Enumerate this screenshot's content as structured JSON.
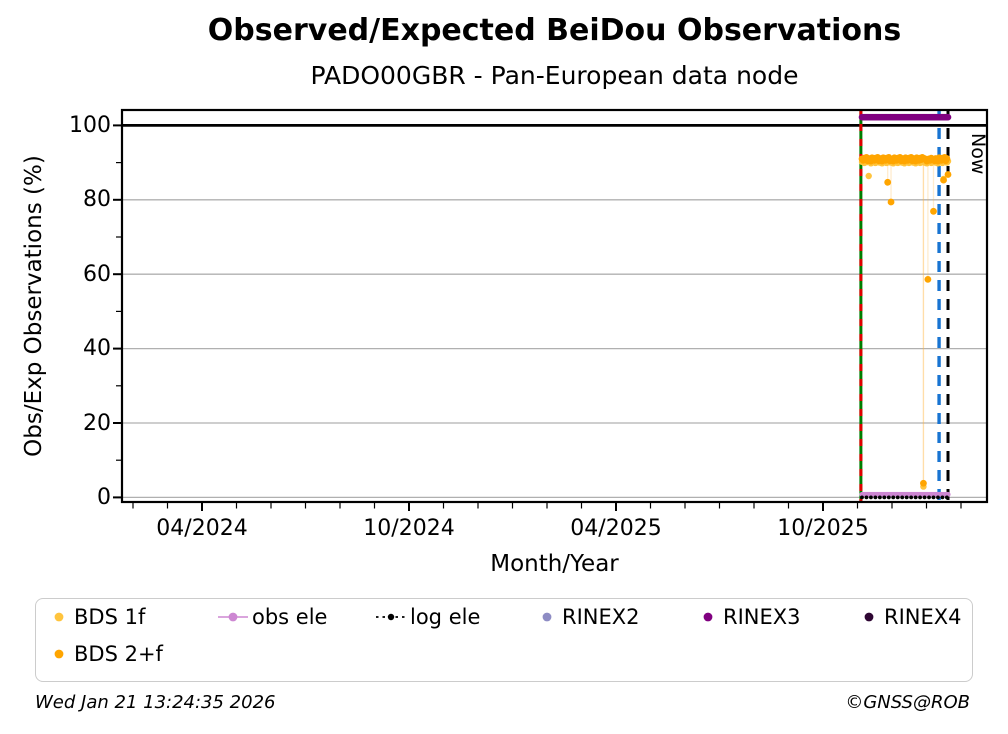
{
  "title": "Observed/Expected BeiDou Observations",
  "subtitle": "PADO00GBR - Pan-European data node",
  "station_id": "PADO00GBR",
  "axes": {
    "xlabel": "Month/Year",
    "ylabel": "Obs/Exp Observations (%)"
  },
  "annotations": {
    "now_label": "Now"
  },
  "legend": {
    "items": [
      {
        "label": "BDS 1f",
        "marker": "dot",
        "color": "#FFC43D"
      },
      {
        "label": "BDS 2+f",
        "marker": "dot",
        "color": "#FFA500"
      },
      {
        "label": "obs ele",
        "marker": "dot-line",
        "color": "#CD87D2"
      },
      {
        "label": "log ele",
        "marker": "dot-dotted-line",
        "color": "#000000"
      },
      {
        "label": "RINEX2",
        "marker": "dot",
        "color": "#8E8CC4"
      },
      {
        "label": "RINEX3",
        "marker": "dot",
        "color": "#800080"
      },
      {
        "label": "RINEX4",
        "marker": "dot",
        "color": "#2E0633"
      }
    ]
  },
  "footer": {
    "timestamp": "Wed Jan 21 13:24:35 2026",
    "credit": "©GNSS@ROB"
  },
  "chart_data": {
    "type": "scatter",
    "title": "Observed/Expected BeiDou Observations",
    "subtitle": "PADO00GBR - Pan-European data node",
    "xlabel": "Month/Year",
    "ylabel": "Obs/Exp Observations (%)",
    "ylim": [
      0,
      104.5
    ],
    "x_range_months": [
      "01/2024",
      "02/2026"
    ],
    "x_major_ticks": [
      "04/2024",
      "10/2024",
      "04/2025",
      "10/2025"
    ],
    "x_minor_tick_unit": "month",
    "y_major_ticks": [
      0,
      20,
      40,
      60,
      80,
      100
    ],
    "y_minor_ticks": [
      10,
      30,
      50,
      70,
      90
    ],
    "grid": "horizontal gray lines at 0/20/40/60/80",
    "reference_line_y": 100,
    "legend_position": "below plot",
    "x_unit": "days, day 0 = first data point (~03 Nov 2025)",
    "series": [
      {
        "name": "BDS 1f",
        "color": "#FFC43D",
        "marker": "circle",
        "day_start": 0,
        "values": [
          90.2,
          90.7,
          89.9,
          90.5,
          90.1,
          90.8,
          86.4,
          90.4,
          89.8,
          90.6,
          90.2,
          90.7,
          89.9,
          90.5,
          90.1,
          90.8,
          90.0,
          90.4,
          89.8,
          90.6,
          90.2,
          90.7,
          89.9,
          90.5,
          90.1,
          90.8,
          90.0,
          90.4,
          89.8,
          90.6,
          90.2,
          90.7,
          89.9,
          90.5,
          90.1,
          90.8,
          90.0,
          90.4,
          89.8,
          90.6,
          90.2,
          90.7,
          89.9,
          90.5,
          90.1,
          90.8,
          90.0,
          90.4,
          89.8,
          90.6,
          90.2,
          90.7,
          89.9,
          90.5,
          90.1,
          2.9,
          90.0,
          90.4,
          89.8,
          90.6,
          90.2,
          90.7,
          89.9,
          90.5,
          90.1,
          90.8,
          90.0,
          90.4,
          89.8,
          90.6,
          90.2,
          90.7,
          89.9,
          85.6,
          90.1,
          90.8,
          90.0,
          90.4
        ]
      },
      {
        "name": "BDS 2+f",
        "color": "#FFA500",
        "marker": "circle",
        "day_start": 0,
        "values": [
          91.0,
          90.6,
          91.2,
          90.8,
          91.4,
          90.5,
          91.1,
          90.9,
          90.4,
          91.3,
          91.0,
          90.6,
          91.2,
          90.8,
          91.4,
          90.5,
          91.1,
          90.9,
          90.4,
          91.3,
          91.0,
          90.6,
          91.2,
          84.7,
          91.4,
          90.5,
          79.4,
          90.9,
          90.4,
          91.3,
          91.0,
          90.6,
          91.2,
          90.8,
          91.4,
          90.5,
          91.1,
          90.9,
          90.4,
          91.3,
          91.0,
          90.6,
          91.2,
          90.8,
          91.4,
          90.5,
          91.1,
          90.9,
          90.4,
          91.3,
          91.0,
          90.6,
          91.2,
          90.8,
          91.4,
          3.8,
          91.1,
          90.9,
          90.4,
          58.6,
          91.0,
          90.6,
          91.2,
          90.8,
          76.9,
          90.5,
          91.1,
          90.9,
          90.4,
          91.3,
          91.0,
          90.6,
          91.2,
          85.3,
          91.4,
          90.5,
          91.1,
          86.8
        ]
      },
      {
        "name": "obs ele",
        "color": "#CD87D2",
        "marker": "circle",
        "constant_value": 0.8,
        "day_start": 0,
        "day_end": 77
      },
      {
        "name": "log ele",
        "color": "#000000",
        "marker": "dotted",
        "constant_value": 0.0,
        "day_start": 0,
        "day_end": 77
      },
      {
        "name": "RINEX2",
        "color": "#8E8CC4",
        "marker": "circle",
        "values": []
      },
      {
        "name": "RINEX3",
        "color": "#800080",
        "marker": "circle",
        "constant_value": 102.2,
        "day_start": 0,
        "day_end": 77
      },
      {
        "name": "RINEX4",
        "color": "#2E0633",
        "marker": "circle",
        "values": []
      }
    ],
    "vlines": [
      {
        "name": "data-start",
        "x_day": -1,
        "style": "solid green with red dashes",
        "colors": [
          "#007D00",
          "#E10000"
        ]
      },
      {
        "name": "latest-data",
        "x_day": 69,
        "style": "dashed",
        "color": "#1874D2"
      },
      {
        "name": "now",
        "x_day": 77,
        "style": "dashed",
        "color": "#000000",
        "label": "Now"
      }
    ]
  }
}
